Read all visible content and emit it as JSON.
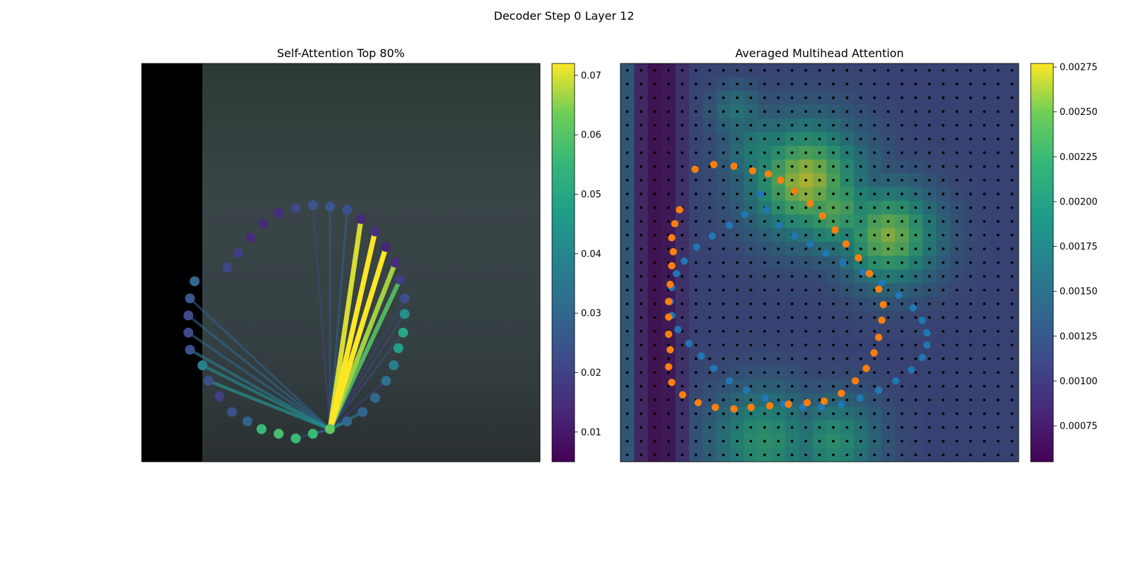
{
  "figure": {
    "suptitle": "Decoder Step 0 Layer 12"
  },
  "chart_data": [
    {
      "type": "scatter",
      "title": "Self-Attention Top 80%",
      "colormap": "viridis",
      "colorbar": {
        "range": [
          0.005,
          0.072
        ],
        "ticks": [
          0.01,
          0.02,
          0.03,
          0.04,
          0.05,
          0.06,
          0.07
        ]
      },
      "image_extent": [
        0,
        100,
        0,
        100
      ],
      "background_colors": {
        "pad": "#000000",
        "photo": "#3a4442"
      },
      "points": [
        {
          "x": 17.0,
          "y": 70.0,
          "v": 0.031
        },
        {
          "x": 15.5,
          "y": 75.5,
          "v": 0.025
        },
        {
          "x": 15.0,
          "y": 81.0,
          "v": 0.022
        },
        {
          "x": 15.0,
          "y": 86.5,
          "v": 0.022
        },
        {
          "x": 15.5,
          "y": 92.0,
          "v": 0.024
        },
        {
          "x": 19.5,
          "y": 97.0,
          "v": 0.038
        },
        {
          "x": 21.5,
          "y": 102.0,
          "v": 0.024
        },
        {
          "x": 25.0,
          "y": 107.0,
          "v": 0.019
        },
        {
          "x": 29.0,
          "y": 112.0,
          "v": 0.024
        },
        {
          "x": 34.0,
          "y": 115.0,
          "v": 0.028
        },
        {
          "x": 38.5,
          "y": 117.5,
          "v": 0.056
        },
        {
          "x": 44.0,
          "y": 119.0,
          "v": 0.058
        },
        {
          "x": 49.5,
          "y": 120.5,
          "v": 0.056
        },
        {
          "x": 55.0,
          "y": 119.0,
          "v": 0.056
        },
        {
          "x": 60.5,
          "y": 117.5,
          "v": 0.062
        },
        {
          "x": 66.0,
          "y": 115.0,
          "v": 0.03
        },
        {
          "x": 71.0,
          "y": 112.0,
          "v": 0.029
        },
        {
          "x": 75.0,
          "y": 107.5,
          "v": 0.03
        },
        {
          "x": 78.5,
          "y": 102.0,
          "v": 0.033
        },
        {
          "x": 81.0,
          "y": 97.0,
          "v": 0.037
        },
        {
          "x": 82.5,
          "y": 91.5,
          "v": 0.048
        },
        {
          "x": 84.0,
          "y": 86.5,
          "v": 0.05
        },
        {
          "x": 84.5,
          "y": 80.5,
          "v": 0.042
        },
        {
          "x": 84.5,
          "y": 75.5,
          "v": 0.024
        },
        {
          "x": 83.0,
          "y": 69.5,
          "v": 0.019
        },
        {
          "x": 81.5,
          "y": 64.0,
          "v": 0.015
        },
        {
          "x": 78.5,
          "y": 59.0,
          "v": 0.013
        },
        {
          "x": 75.0,
          "y": 54.0,
          "v": 0.016
        },
        {
          "x": 70.5,
          "y": 50.0,
          "v": 0.014
        },
        {
          "x": 66.0,
          "y": 47.0,
          "v": 0.024
        },
        {
          "x": 60.5,
          "y": 46.0,
          "v": 0.025
        },
        {
          "x": 55.0,
          "y": 45.5,
          "v": 0.025
        },
        {
          "x": 49.5,
          "y": 46.5,
          "v": 0.022
        },
        {
          "x": 44.0,
          "y": 48.0,
          "v": 0.015
        },
        {
          "x": 39.0,
          "y": 51.5,
          "v": 0.014
        },
        {
          "x": 35.0,
          "y": 56.0,
          "v": 0.014
        },
        {
          "x": 31.0,
          "y": 61.0,
          "v": 0.019
        },
        {
          "x": 27.5,
          "y": 65.5,
          "v": 0.021
        }
      ],
      "attention_lines": {
        "query_index": 14,
        "edges": [
          {
            "to": 24,
            "w": 0.06
          },
          {
            "to": 25,
            "w": 0.067
          },
          {
            "to": 26,
            "w": 0.072
          },
          {
            "to": 27,
            "w": 0.072
          },
          {
            "to": 28,
            "w": 0.07
          },
          {
            "to": 29,
            "w": 0.028
          },
          {
            "to": 30,
            "w": 0.026
          },
          {
            "to": 31,
            "w": 0.021
          },
          {
            "to": 21,
            "w": 0.023
          },
          {
            "to": 22,
            "w": 0.022
          },
          {
            "to": 23,
            "w": 0.02
          },
          {
            "to": 18,
            "w": 0.02
          },
          {
            "to": 15,
            "w": 0.04
          },
          {
            "to": 16,
            "w": 0.036
          },
          {
            "to": 13,
            "w": 0.03
          },
          {
            "to": 12,
            "w": 0.025
          },
          {
            "to": 6,
            "w": 0.043
          },
          {
            "to": 5,
            "w": 0.04
          },
          {
            "to": 4,
            "w": 0.036
          },
          {
            "to": 3,
            "w": 0.03
          },
          {
            "to": 2,
            "w": 0.03
          },
          {
            "to": 1,
            "w": 0.028
          }
        ]
      }
    },
    {
      "type": "heatmap",
      "title": "Averaged Multihead Attention",
      "colormap": "viridis",
      "colorbar": {
        "range": [
          0.00055,
          0.00277
        ],
        "ticks": [
          0.00075,
          0.001,
          0.00125,
          0.0015,
          0.00175,
          0.002,
          0.00225,
          0.0025,
          0.00275
        ]
      },
      "grid": {
        "rows": 29,
        "cols": 29,
        "base_value": 0.0011,
        "left_dark_columns": [
          [
            0,
            0.00135
          ],
          [
            1,
            0.0008
          ],
          [
            2,
            0.0006
          ],
          [
            3,
            0.00066
          ],
          [
            4,
            0.0009
          ]
        ]
      },
      "hotspots": [
        {
          "col": 13,
          "row": 8,
          "r": 6.5,
          "v": 0.0027
        },
        {
          "col": 19,
          "row": 12,
          "r": 5.5,
          "v": 0.0026
        },
        {
          "col": 15,
          "row": 10,
          "r": 5.0,
          "v": 0.00245
        },
        {
          "col": 10,
          "row": 27,
          "r": 6.0,
          "v": 0.00215
        },
        {
          "col": 15,
          "row": 27,
          "r": 5.0,
          "v": 0.0021
        },
        {
          "col": 10,
          "row": 6,
          "r": 4.5,
          "v": 0.00195
        },
        {
          "col": 8,
          "row": 3,
          "r": 3.0,
          "v": 0.00175
        }
      ],
      "blue_points": [
        {
          "x": 45.0,
          "y": 42.0
        },
        {
          "x": 47.0,
          "y": 47.0
        },
        {
          "x": 51.0,
          "y": 52.0
        },
        {
          "x": 56.0,
          "y": 55.5
        },
        {
          "x": 61.0,
          "y": 58.0
        },
        {
          "x": 66.0,
          "y": 61.0
        },
        {
          "x": 71.5,
          "y": 64.0
        },
        {
          "x": 78.0,
          "y": 67.0
        },
        {
          "x": 84.0,
          "y": 70.5
        },
        {
          "x": 89.5,
          "y": 74.5
        },
        {
          "x": 94.0,
          "y": 78.5
        },
        {
          "x": 97.0,
          "y": 82.5
        },
        {
          "x": 98.5,
          "y": 86.5
        },
        {
          "x": 98.5,
          "y": 90.5
        },
        {
          "x": 97.0,
          "y": 94.5
        },
        {
          "x": 93.5,
          "y": 98.5
        },
        {
          "x": 88.5,
          "y": 102.0
        },
        {
          "x": 83.0,
          "y": 105.0
        },
        {
          "x": 77.0,
          "y": 107.5
        },
        {
          "x": 71.0,
          "y": 109.5
        },
        {
          "x": 64.5,
          "y": 110.5
        },
        {
          "x": 58.5,
          "y": 110.5
        },
        {
          "x": 52.5,
          "y": 109.5
        },
        {
          "x": 46.5,
          "y": 107.5
        },
        {
          "x": 40.5,
          "y": 105.0
        },
        {
          "x": 35.0,
          "y": 102.0
        },
        {
          "x": 30.0,
          "y": 98.0
        },
        {
          "x": 26.0,
          "y": 94.0
        },
        {
          "x": 22.0,
          "y": 90.0
        },
        {
          "x": 18.5,
          "y": 85.5
        },
        {
          "x": 16.5,
          "y": 81.0
        },
        {
          "x": 16.0,
          "y": 76.5
        },
        {
          "x": 16.5,
          "y": 72.0
        },
        {
          "x": 18.0,
          "y": 67.5
        },
        {
          "x": 20.5,
          "y": 63.5
        },
        {
          "x": 24.5,
          "y": 59.0
        },
        {
          "x": 29.5,
          "y": 55.5
        },
        {
          "x": 35.0,
          "y": 52.0
        },
        {
          "x": 40.0,
          "y": 48.5
        }
      ],
      "orange_points": [
        {
          "x": 24.0,
          "y": 34.0
        },
        {
          "x": 30.0,
          "y": 32.5
        },
        {
          "x": 36.5,
          "y": 33.0
        },
        {
          "x": 42.5,
          "y": 34.5
        },
        {
          "x": 47.5,
          "y": 35.5
        },
        {
          "x": 51.5,
          "y": 37.5
        },
        {
          "x": 56.0,
          "y": 41.0
        },
        {
          "x": 61.0,
          "y": 45.0
        },
        {
          "x": 65.0,
          "y": 49.0
        },
        {
          "x": 69.0,
          "y": 53.5
        },
        {
          "x": 72.5,
          "y": 58.0
        },
        {
          "x": 76.5,
          "y": 62.5
        },
        {
          "x": 80.0,
          "y": 67.5
        },
        {
          "x": 83.0,
          "y": 72.5
        },
        {
          "x": 84.5,
          "y": 77.5
        },
        {
          "x": 84.0,
          "y": 82.5
        },
        {
          "x": 83.0,
          "y": 88.0
        },
        {
          "x": 81.5,
          "y": 93.0
        },
        {
          "x": 79.0,
          "y": 98.0
        },
        {
          "x": 75.5,
          "y": 102.0
        },
        {
          "x": 71.0,
          "y": 106.0
        },
        {
          "x": 65.5,
          "y": 108.5
        },
        {
          "x": 60.0,
          "y": 109.0
        },
        {
          "x": 54.0,
          "y": 109.5
        },
        {
          "x": 48.0,
          "y": 110.0
        },
        {
          "x": 42.0,
          "y": 110.5
        },
        {
          "x": 36.5,
          "y": 111.0
        },
        {
          "x": 30.5,
          "y": 110.5
        },
        {
          "x": 25.0,
          "y": 109.0
        },
        {
          "x": 20.0,
          "y": 106.5
        },
        {
          "x": 16.5,
          "y": 102.5
        },
        {
          "x": 15.5,
          "y": 97.5
        },
        {
          "x": 16.0,
          "y": 92.0
        },
        {
          "x": 15.5,
          "y": 87.0
        },
        {
          "x": 15.5,
          "y": 81.5
        },
        {
          "x": 15.5,
          "y": 76.5
        },
        {
          "x": 16.0,
          "y": 71.0
        },
        {
          "x": 16.5,
          "y": 65.0
        },
        {
          "x": 17.0,
          "y": 60.5
        },
        {
          "x": 16.5,
          "y": 56.0
        },
        {
          "x": 17.5,
          "y": 51.5
        },
        {
          "x": 19.0,
          "y": 47.0
        }
      ],
      "point_colors": {
        "blue": "#1f77b4",
        "orange": "#ff7f0e",
        "grid_dot": "#000000"
      }
    }
  ]
}
